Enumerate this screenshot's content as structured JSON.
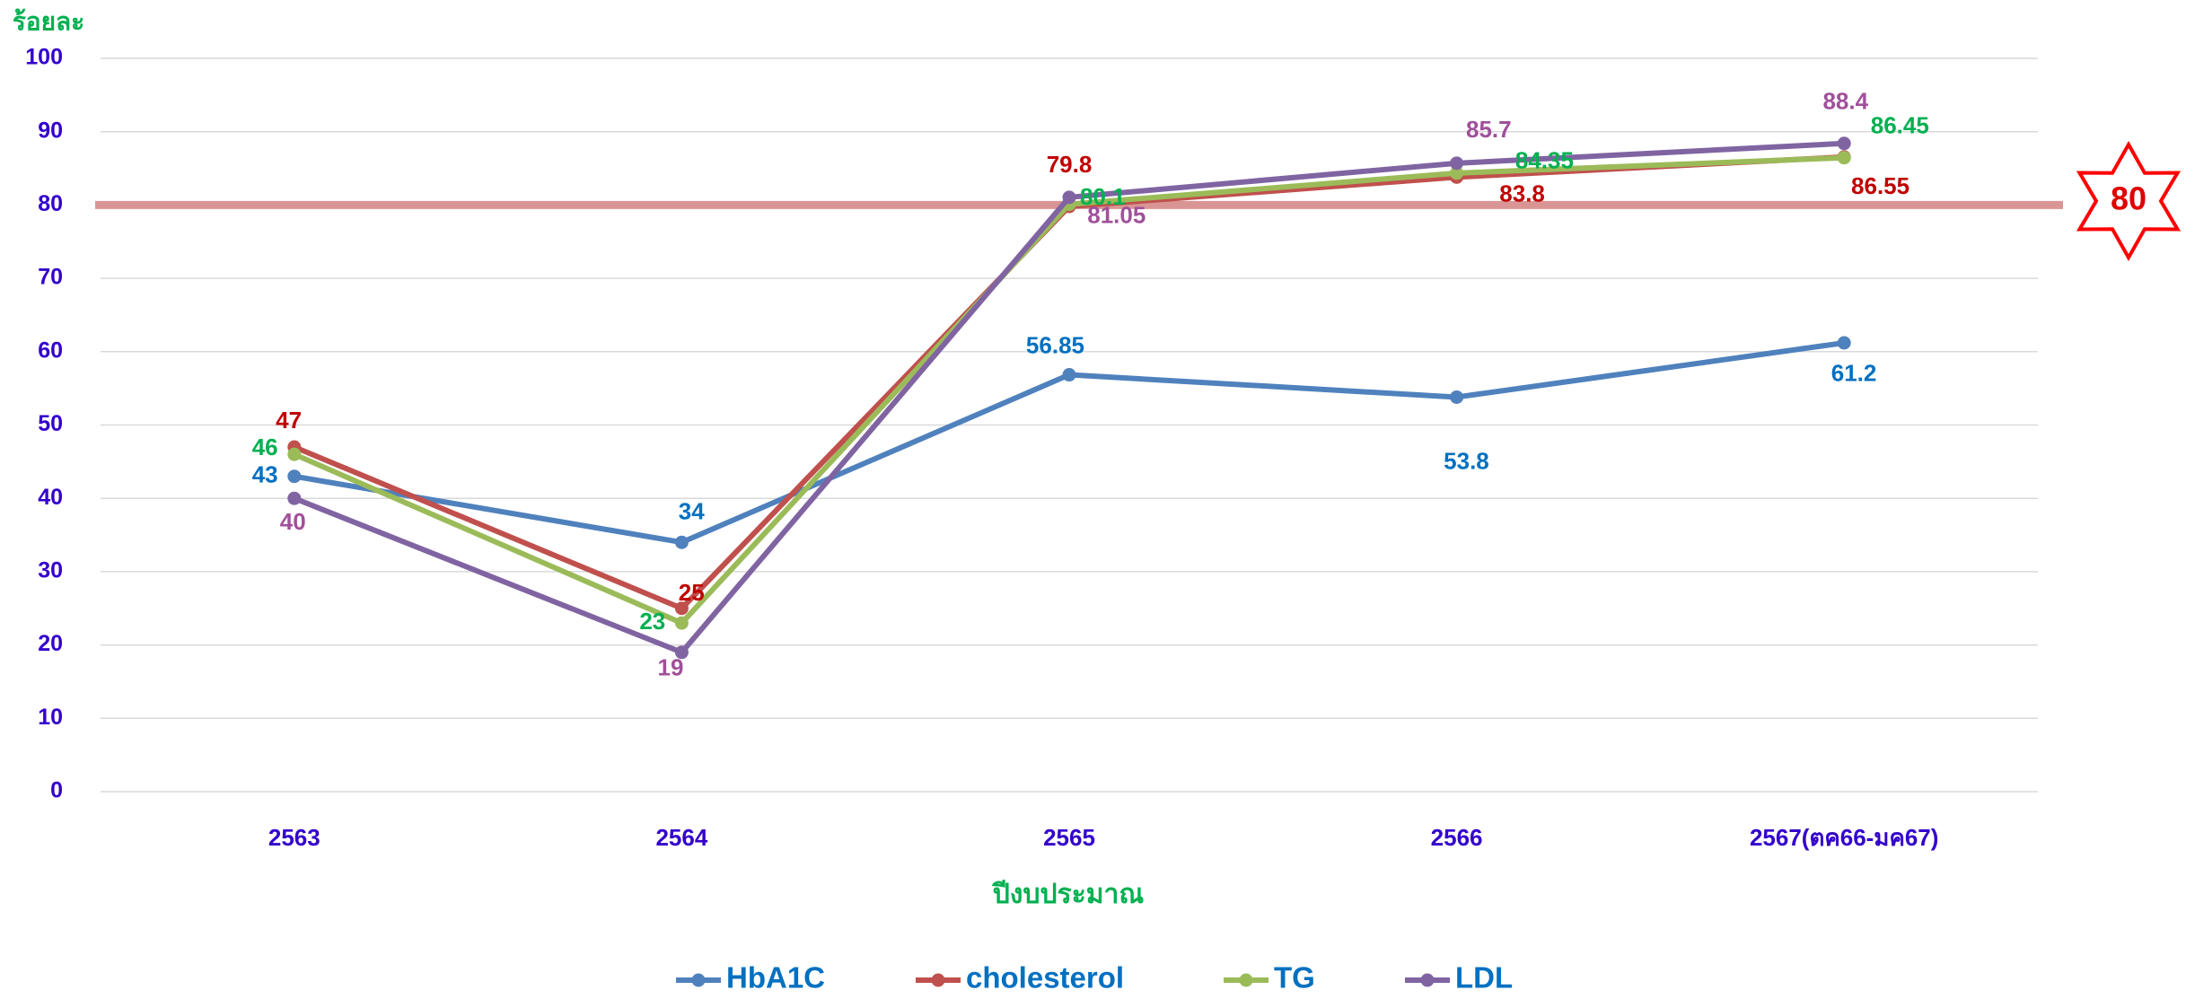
{
  "chart_data": {
    "type": "line",
    "y_axis_label": "ร้อยละ",
    "x_axis_label": "ปีงบประมาณ",
    "categories": [
      "2563",
      "2564",
      "2565",
      "2566",
      "2567(ตค66-มค67)"
    ],
    "series": [
      {
        "name": "HbA1C",
        "color": "#4f81bd",
        "label_color": "#0070c0",
        "values": [
          43,
          34,
          56.85,
          53.8,
          61.2
        ]
      },
      {
        "name": "cholesterol",
        "color": "#c0504d",
        "label_color": "#c00000",
        "values": [
          47,
          25,
          79.8,
          83.8,
          86.55
        ]
      },
      {
        "name": "TG",
        "color": "#9bbb59",
        "label_color": "#00b050",
        "values": [
          46,
          23,
          80.1,
          84.35,
          86.45
        ]
      },
      {
        "name": "LDL",
        "color": "#8064a2",
        "label_color": "#a0509a",
        "values": [
          40,
          19,
          81.05,
          85.7,
          88.4
        ]
      }
    ],
    "ylim": [
      0,
      100
    ],
    "yticks": [
      0,
      10,
      20,
      30,
      40,
      50,
      60,
      70,
      80,
      90,
      100
    ],
    "grid": true,
    "legend": "bottom",
    "reference_line": {
      "value": 80,
      "label": "80",
      "color": "#d99594"
    }
  }
}
